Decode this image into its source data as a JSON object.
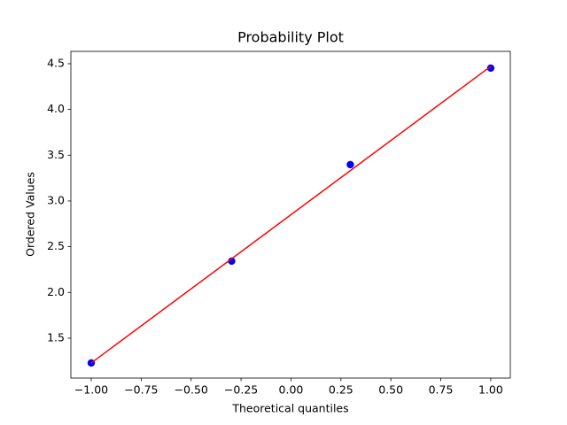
{
  "chart_data": {
    "type": "scatter",
    "title": "Probability Plot",
    "x_label": "Theoretical quantiles",
    "y_label": "Ordered Values",
    "series": [
      {
        "color": "#0000ff",
        "x": [
          -1.0,
          -0.297,
          0.297,
          1.0
        ],
        "values": [
          1.229,
          2.342,
          3.397,
          4.452
        ],
        "style": "points"
      },
      {
        "color": "#ff0000",
        "x": [
          -1.0,
          1.0
        ],
        "values": [
          1.229,
          4.471
        ],
        "style": "line"
      }
    ],
    "xlim": [
      -1.102,
      1.098
    ],
    "ylim": [
      1.064,
      4.635
    ],
    "xticks": [
      {
        "value": -1.0,
        "label": "−1.00"
      },
      {
        "value": -0.75,
        "label": "−0.75"
      },
      {
        "value": -0.5,
        "label": "−0.50"
      },
      {
        "value": -0.25,
        "label": "−0.25"
      },
      {
        "value": 0,
        "label": "0.00"
      },
      {
        "value": 0.25,
        "label": "0.25"
      },
      {
        "value": 0.5,
        "label": "0.50"
      },
      {
        "value": 0.75,
        "label": "0.75"
      },
      {
        "value": 1.0,
        "label": "1.00"
      }
    ],
    "yticks": [
      1.5,
      {
        "value": 2,
        "label": "2.0"
      },
      2.5,
      {
        "value": 3,
        "label": "3.0"
      },
      3.5,
      {
        "value": 4,
        "label": "4.0"
      },
      4.5
    ],
    "grid": false
  }
}
